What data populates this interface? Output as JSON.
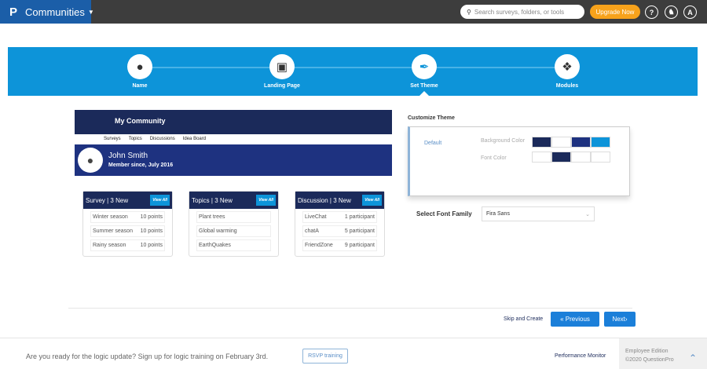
{
  "topbar": {
    "logo": "P",
    "app": "Communities",
    "search_placeholder": "Search surveys, folders, or tools",
    "upgrade": "Upgrade Now",
    "help": "?",
    "avatar": "A"
  },
  "steps": [
    {
      "label": "Name",
      "icon": "user-icon"
    },
    {
      "label": "Landing Page",
      "icon": "monitor-icon"
    },
    {
      "label": "Set Theme",
      "icon": "brush-icon"
    },
    {
      "label": "Modules",
      "icon": "cubes-icon"
    }
  ],
  "active_step": 2,
  "preview": {
    "title": "My Community",
    "nav": [
      "Surveys",
      "Topics",
      "Discussions",
      "Idea Board"
    ],
    "user": "John Smith",
    "member_since": "Member since, July 2016",
    "cards": [
      {
        "title": "Survey | 3 New",
        "view_all": "View All",
        "rows": [
          [
            "Winter season",
            "10 points"
          ],
          [
            "Summer season",
            "10 points"
          ],
          [
            "Rainy season",
            "10 points"
          ]
        ]
      },
      {
        "title": "Topics | 3 New",
        "view_all": "View All",
        "rows": [
          [
            "Plant trees",
            ""
          ],
          [
            "Global warming",
            ""
          ],
          [
            "EarthQuakes",
            ""
          ]
        ]
      },
      {
        "title": "Discussion | 3 New",
        "view_all": "View All",
        "rows": [
          [
            "LiveChat",
            "1 participant"
          ],
          [
            "chatA",
            "5 participant"
          ],
          [
            "FriendZone",
            "9 participant"
          ]
        ]
      }
    ]
  },
  "theme": {
    "title": "Customize Theme",
    "preset": "Default",
    "bg_label": "Background Color",
    "bg_colors": [
      "#1b2a5a",
      "#ffffff",
      "#1e3280",
      "#0d94d9"
    ],
    "font_label": "Font Color",
    "font_colors": [
      "#ffffff",
      "#1b2a5a",
      "#ffffff",
      "#ffffff"
    ]
  },
  "font_family": {
    "label": "Select Font Family",
    "value": "Fira Sans"
  },
  "actions": {
    "skip": "Skip and Create",
    "previous": "« Previous",
    "next": "Next›"
  },
  "footer": {
    "message": "Are you ready for the logic update? Sign up for logic training on February 3rd.",
    "rsvp": "RSVP training",
    "perf": "Performance Monitor",
    "edition": "Employee Edition",
    "copyright": "©2020 QuestionPro"
  }
}
